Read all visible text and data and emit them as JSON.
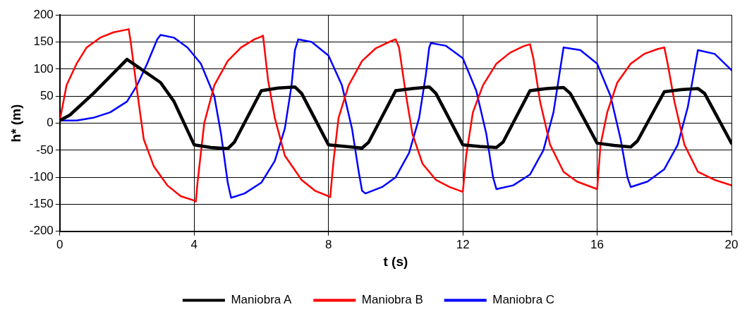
{
  "chart_data": {
    "type": "line",
    "xlabel": "t (s)",
    "ylabel": "h* (m)",
    "xlim": [
      0,
      20
    ],
    "xticks": [
      0,
      4,
      8,
      12,
      16,
      20
    ],
    "ylim": [
      -200,
      200
    ],
    "yticks": [
      -200,
      -150,
      -100,
      -50,
      0,
      50,
      100,
      150,
      200
    ],
    "grid": true,
    "legend": "bottom",
    "marker": "none",
    "line_style": "solid",
    "series": [
      {
        "name": "Maniobra A",
        "color": "#000000",
        "x": [
          0,
          0.3,
          1,
          2,
          3,
          3.4,
          4,
          4.5,
          5,
          5.2,
          6,
          6.5,
          7,
          7.2,
          8,
          8.5,
          9,
          9.2,
          10,
          10.5,
          11,
          11.2,
          12,
          12.5,
          13,
          13.2,
          14,
          14.5,
          15,
          15.2,
          16,
          16.5,
          17,
          17.2,
          18,
          18.5,
          19,
          19.2,
          20
        ],
        "values": [
          5,
          15,
          55,
          118,
          75,
          40,
          -40,
          -45,
          -47,
          -35,
          60,
          65,
          67,
          55,
          -40,
          -43,
          -46,
          -35,
          60,
          64,
          67,
          55,
          -40,
          -43,
          -45,
          -35,
          60,
          64,
          66,
          55,
          -37,
          -41,
          -44,
          -33,
          58,
          62,
          64,
          55,
          -37
        ]
      },
      {
        "name": "Maniobra B",
        "color": "#ff0000",
        "x": [
          0,
          0.2,
          0.5,
          0.8,
          1.2,
          1.6,
          2,
          2.05,
          2.1,
          2.3,
          2.5,
          2.8,
          3.2,
          3.6,
          4,
          4.05,
          4.1,
          4.3,
          4.6,
          5,
          5.4,
          5.8,
          6,
          6.05,
          6.2,
          6.4,
          6.7,
          7.2,
          7.6,
          8,
          8.05,
          8.15,
          8.3,
          8.6,
          9,
          9.4,
          9.8,
          10,
          10.1,
          10.3,
          10.5,
          10.8,
          11.2,
          11.6,
          12,
          12.1,
          12.3,
          12.6,
          13,
          13.4,
          13.8,
          14,
          14.1,
          14.3,
          14.6,
          15,
          15.4,
          16,
          16.1,
          16.3,
          16.6,
          17,
          17.4,
          17.8,
          18,
          18.1,
          18.3,
          18.6,
          19,
          19.5,
          20
        ],
        "values": [
          5,
          70,
          110,
          140,
          158,
          168,
          173,
          174,
          155,
          60,
          -30,
          -80,
          -115,
          -135,
          -143,
          -145,
          -110,
          0,
          70,
          115,
          140,
          155,
          160,
          162,
          80,
          10,
          -60,
          -105,
          -125,
          -135,
          -137,
          -70,
          10,
          70,
          115,
          138,
          150,
          155,
          140,
          55,
          -20,
          -75,
          -105,
          -118,
          -127,
          -60,
          20,
          70,
          110,
          130,
          142,
          146,
          120,
          40,
          -40,
          -90,
          -108,
          -122,
          -40,
          20,
          75,
          110,
          128,
          137,
          140,
          110,
          40,
          -40,
          -90,
          -105,
          -115
        ]
      },
      {
        "name": "Maniobra C",
        "color": "#0000ff",
        "x": [
          0,
          0.5,
          1,
          1.5,
          2,
          2.3,
          2.6,
          2.8,
          2.9,
          3,
          3.4,
          3.8,
          4.2,
          4.6,
          4.8,
          5,
          5.1,
          5.5,
          6,
          6.4,
          6.7,
          6.9,
          7,
          7.1,
          7.5,
          8,
          8.4,
          8.7,
          8.9,
          9,
          9.1,
          9.6,
          10,
          10.4,
          10.7,
          10.9,
          11,
          11.05,
          11.5,
          12,
          12.4,
          12.7,
          12.9,
          13,
          13.5,
          14,
          14.4,
          14.7,
          14.9,
          15,
          15.5,
          16,
          16.4,
          16.7,
          16.9,
          17,
          17.5,
          18,
          18.4,
          18.7,
          18.9,
          19,
          19.5,
          20
        ],
        "values": [
          5,
          5,
          10,
          20,
          40,
          70,
          110,
          140,
          155,
          163,
          158,
          140,
          110,
          50,
          -20,
          -110,
          -138,
          -130,
          -110,
          -70,
          -10,
          70,
          135,
          155,
          150,
          125,
          70,
          -10,
          -90,
          -125,
          -130,
          -118,
          -100,
          -55,
          10,
          90,
          140,
          148,
          143,
          120,
          60,
          -20,
          -100,
          -122,
          -115,
          -95,
          -50,
          20,
          100,
          140,
          135,
          110,
          50,
          -30,
          -100,
          -118,
          -108,
          -85,
          -40,
          30,
          100,
          135,
          128,
          98
        ]
      }
    ]
  }
}
